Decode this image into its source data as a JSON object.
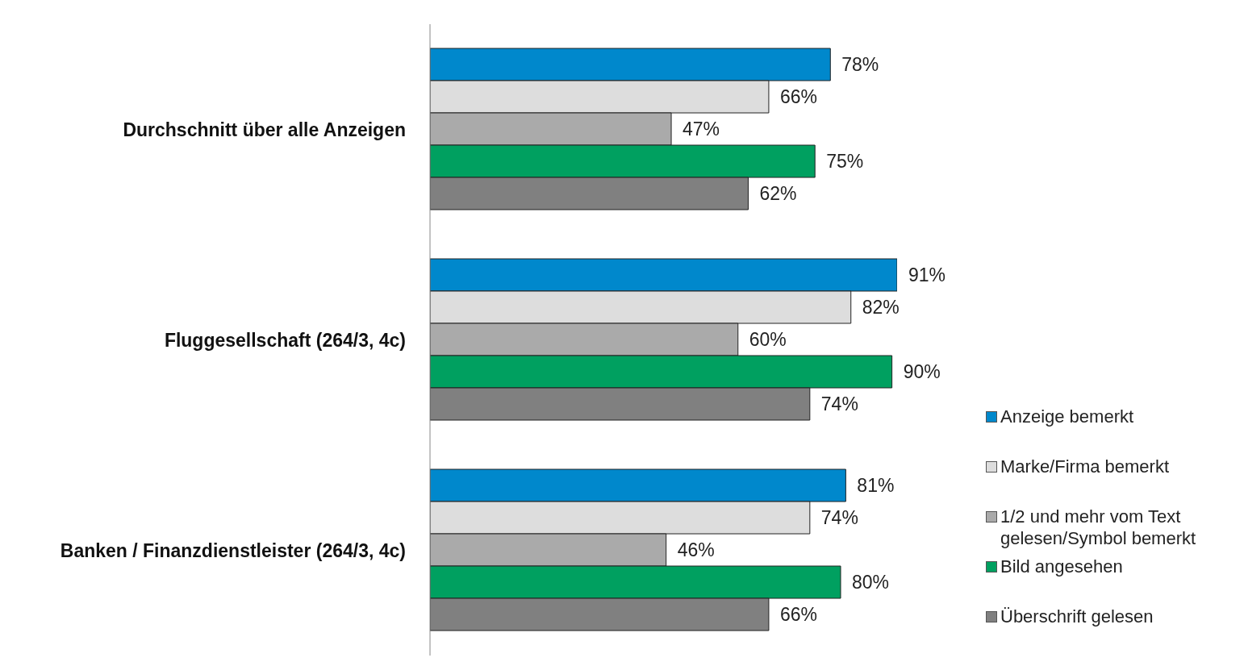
{
  "chart_data": {
    "type": "bar",
    "orientation": "horizontal",
    "categories": [
      "Durchschnitt über alle Anzeigen",
      "Fluggesellschaft (264/3, 4c)",
      "Banken / Finanzdienstleister (264/3, 4c)"
    ],
    "series": [
      {
        "name": "Anzeige bemerkt",
        "color": "#0088cc",
        "values": [
          78,
          91,
          81
        ],
        "value_labels": [
          "78%",
          "91%",
          "81%"
        ]
      },
      {
        "name": "Marke/Firma bemerkt",
        "color": "#dddddd",
        "values": [
          66,
          82,
          74
        ],
        "value_labels": [
          "66%",
          "82%",
          "74%"
        ]
      },
      {
        "name": "1/2 und mehr vom Text gelesen/Symbol bemerkt",
        "color": "#aaaaaa",
        "values": [
          47,
          60,
          46
        ],
        "value_labels": [
          "47%",
          "60%",
          "46%"
        ]
      },
      {
        "name": "Bild angesehen",
        "color": "#00a060",
        "values": [
          75,
          90,
          80
        ],
        "value_labels": [
          "75%",
          "90%",
          "80%"
        ]
      },
      {
        "name": "Überschrift gelesen",
        "color": "#808080",
        "values": [
          62,
          74,
          66
        ],
        "value_labels": [
          "62%",
          "74%",
          "66%"
        ]
      }
    ],
    "legend": "bottom right",
    "grid": false
  }
}
